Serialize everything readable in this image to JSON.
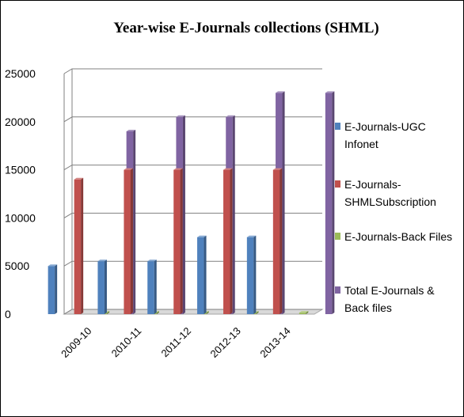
{
  "chart_data": {
    "type": "bar",
    "title": "Year-wise E-Journals collections (SHML)",
    "categories": [
      "2009-10",
      "2010-11",
      "2011-12",
      "2012-13",
      "2013-14"
    ],
    "y_ticks": [
      "0",
      "5000",
      "10000",
      "15000",
      "20000",
      "25000"
    ],
    "ylim": [
      0,
      25000
    ],
    "grid": true,
    "legend_position": "right",
    "series": [
      {
        "name": "E-Journals-UGC Infonet",
        "legend_lines": [
          "E-Journals-UGC",
          "Infonet"
        ],
        "color": "#4f81bd",
        "values": [
          5000,
          5500,
          5500,
          8000,
          8000
        ]
      },
      {
        "name": "E-Journals-SHMLSubscription",
        "legend_lines": [
          "E-Journals-",
          "SHMLSubscription"
        ],
        "color": "#c0504d",
        "values": [
          14000,
          15000,
          15000,
          15000,
          15000
        ]
      },
      {
        "name": "E-Journals-Back Files",
        "legend_lines": [
          "E-Journals-Back Files"
        ],
        "color": "#9bbb59",
        "values": [
          150,
          150,
          150,
          150,
          150
        ]
      },
      {
        "name": "Total E-Journals & Back files",
        "legend_lines": [
          "Total E-Journals &",
          "Back files"
        ],
        "color": "#8064a2",
        "values": [
          19000,
          20500,
          20500,
          23000,
          23000
        ]
      }
    ]
  }
}
